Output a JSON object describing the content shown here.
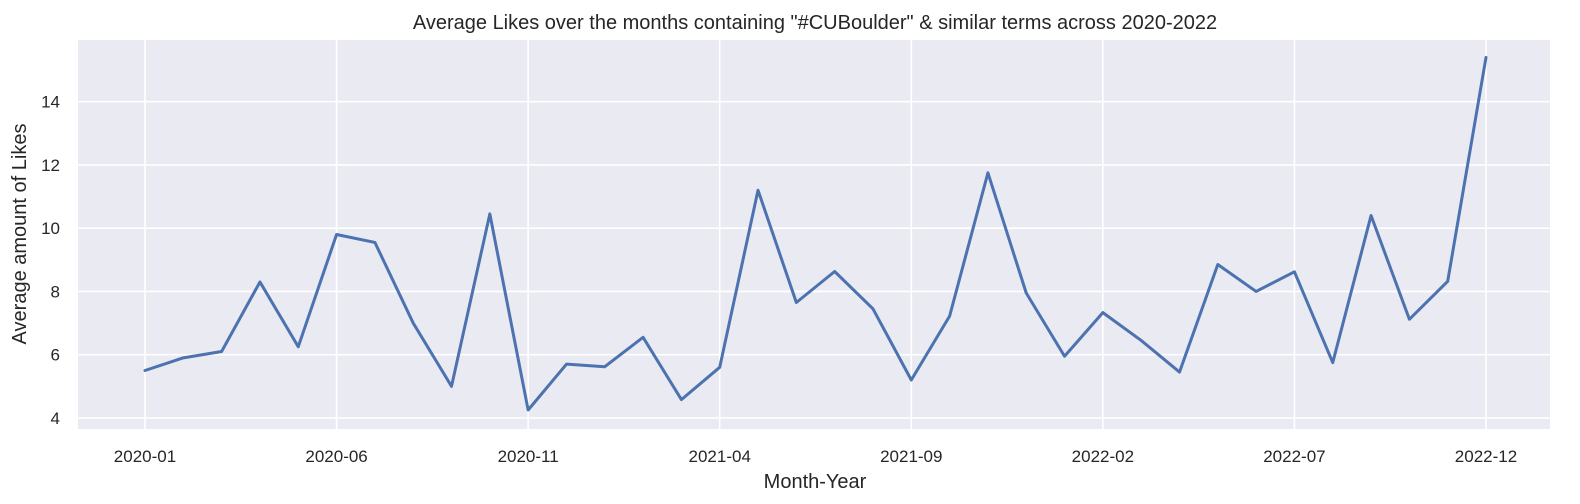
{
  "chart_data": {
    "type": "line",
    "title": "Average Likes over the months containing \"#CUBoulder\" & similar terms across 2020-2022",
    "xlabel": "Month-Year",
    "ylabel": "Average amount of Likes",
    "x_ticks": [
      "2020-01",
      "2020-06",
      "2020-11",
      "2021-04",
      "2021-09",
      "2022-02",
      "2022-07",
      "2022-12"
    ],
    "y_ticks": [
      4,
      6,
      8,
      10,
      12,
      14
    ],
    "ylim": [
      3.65,
      15.95
    ],
    "grid": true,
    "legend": "none",
    "colors": {
      "line": "#4c72b0",
      "plot_background": "#eaeaf2",
      "grid": "#ffffff"
    },
    "series": [
      {
        "x": [
          "2020-01",
          "2020-02",
          "2020-03",
          "2020-04",
          "2020-05",
          "2020-06",
          "2020-07",
          "2020-08",
          "2020-09",
          "2020-10",
          "2020-11",
          "2020-12",
          "2021-01",
          "2021-02",
          "2021-03",
          "2021-04",
          "2021-05",
          "2021-06",
          "2021-07",
          "2021-08",
          "2021-09",
          "2021-10",
          "2021-11",
          "2021-12",
          "2022-01",
          "2022-02",
          "2022-03",
          "2022-04",
          "2022-05",
          "2022-06",
          "2022-07",
          "2022-08",
          "2022-09",
          "2022-10",
          "2022-11",
          "2022-12"
        ],
        "values": [
          5.5,
          5.9,
          6.1,
          8.3,
          6.25,
          9.8,
          9.55,
          7.0,
          5.0,
          10.45,
          4.25,
          5.7,
          5.62,
          6.55,
          4.58,
          5.6,
          11.2,
          7.65,
          8.63,
          7.45,
          5.2,
          7.22,
          11.75,
          7.95,
          5.95,
          7.33,
          6.45,
          5.45,
          8.85,
          8.0,
          8.62,
          5.75,
          10.4,
          7.12,
          8.32,
          15.4
        ]
      }
    ]
  }
}
